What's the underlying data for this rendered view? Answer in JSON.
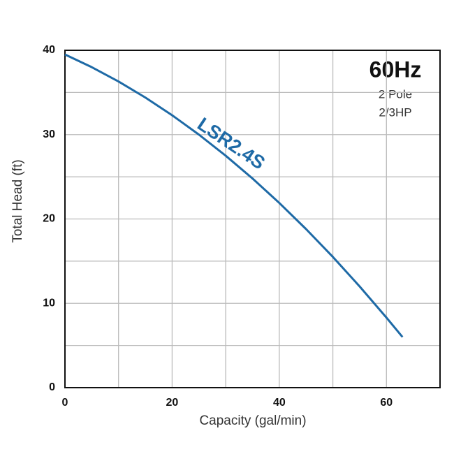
{
  "chart_data": {
    "type": "line",
    "title": "60Hz",
    "annotations": [
      "2 Pole",
      "2/3HP"
    ],
    "x_label": "Capacity  (gal/min)",
    "y_label": "Total Head  (ft)",
    "x": [
      0,
      5,
      10,
      15,
      20,
      25,
      30,
      35,
      40,
      45,
      50,
      55,
      60,
      63
    ],
    "series": [
      {
        "name": "LSR2.4S",
        "color": "#1e6aa6",
        "values": [
          39.5,
          38.0,
          36.3,
          34.4,
          32.3,
          30.0,
          27.5,
          24.8,
          21.9,
          18.8,
          15.5,
          12.0,
          8.3,
          6.0
        ]
      }
    ],
    "xlim": [
      0,
      70
    ],
    "xticks": [
      0,
      20,
      40,
      60
    ],
    "xminor": [
      10,
      30,
      50
    ],
    "ylim": [
      0,
      40
    ],
    "yticks": [
      0,
      10,
      20,
      30,
      40
    ],
    "yminor": [
      5,
      15,
      25,
      35
    ],
    "grid": true
  }
}
